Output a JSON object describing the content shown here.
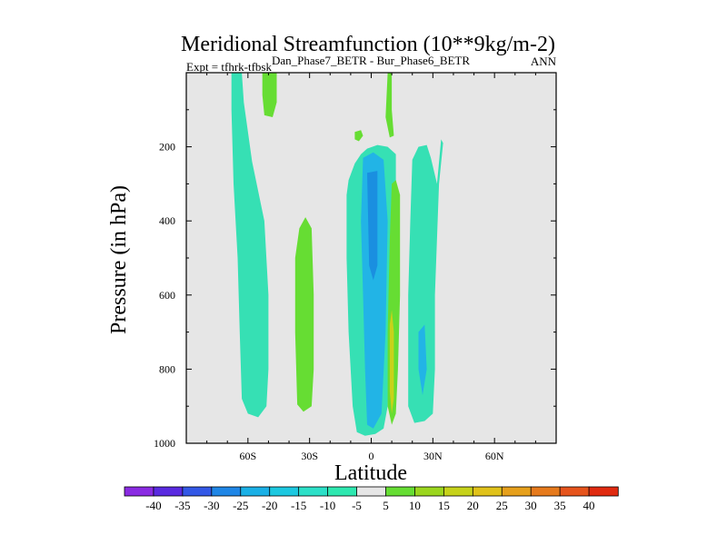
{
  "chart_data": {
    "type": "contour",
    "title": "Meridional Streamfunction (10**9kg/m-2)",
    "subtitle": "Dan_Phase7_BETR - Bur_Phase6_BETR",
    "left_label": "Expt = tfhrk-tfbsk",
    "right_label": "ANN",
    "xlabel": "Latitude",
    "ylabel": "Pressure (in hPa)",
    "xlim": [
      -90,
      90
    ],
    "ylim": [
      1000,
      0
    ],
    "x_ticks": [
      -60,
      -30,
      0,
      30,
      60
    ],
    "x_tick_labels": [
      "60S",
      "30S",
      "0",
      "30N",
      "60N"
    ],
    "y_ticks": [
      200,
      400,
      600,
      800,
      1000
    ],
    "y_tick_labels": [
      "200",
      "400",
      "600",
      "800",
      "1000"
    ],
    "background_color": "#e6e6e6",
    "colorbar": {
      "levels": [
        -40,
        -35,
        -30,
        -25,
        -20,
        -15,
        -10,
        -5,
        5,
        10,
        15,
        20,
        25,
        30,
        35,
        40
      ],
      "labels": [
        "-40",
        "-35",
        "-30",
        "-25",
        "-20",
        "-15",
        "-10",
        "-5",
        "5",
        "10",
        "15",
        "20",
        "25",
        "30",
        "35",
        "40"
      ],
      "colors": [
        "#8a2be2",
        "#5a2ae0",
        "#3358e6",
        "#1f86e6",
        "#1ab0e6",
        "#1cc8e0",
        "#2ce0c8",
        "#2ee8b0",
        "#e6e6e6",
        "#66dd33",
        "#9bd61e",
        "#c6d21a",
        "#e0c21a",
        "#e6a01c",
        "#e67a1c",
        "#e6541c",
        "#e02a10"
      ]
    },
    "regions": [
      {
        "name": "cyan-band-60S",
        "color": "#36e0b4",
        "points": [
          [
            -68,
            0
          ],
          [
            -63,
            0
          ],
          [
            -62,
            80
          ],
          [
            -58,
            240
          ],
          [
            -52,
            400
          ],
          [
            -50,
            600
          ],
          [
            -50,
            800
          ],
          [
            -51,
            900
          ],
          [
            -55,
            930
          ],
          [
            -60,
            920
          ],
          [
            -63,
            880
          ],
          [
            -64,
            700
          ],
          [
            -65,
            500
          ],
          [
            -67,
            300
          ],
          [
            -68,
            100
          ]
        ]
      },
      {
        "name": "green-top-50S",
        "color": "#66dd33",
        "points": [
          [
            -53,
            0
          ],
          [
            -46,
            0
          ],
          [
            -46,
            80
          ],
          [
            -48,
            120
          ],
          [
            -52,
            115
          ],
          [
            -53,
            60
          ]
        ]
      },
      {
        "name": "green-mid-30S",
        "color": "#66dd33",
        "points": [
          [
            -35,
            420
          ],
          [
            -32,
            390
          ],
          [
            -29,
            420
          ],
          [
            -28,
            600
          ],
          [
            -28,
            800
          ],
          [
            -29,
            900
          ],
          [
            -33,
            915
          ],
          [
            -36,
            895
          ],
          [
            -37,
            700
          ],
          [
            -37,
            500
          ]
        ]
      },
      {
        "name": "green-dot-5S",
        "color": "#66dd33",
        "points": [
          [
            -8,
            160
          ],
          [
            -5,
            155
          ],
          [
            -4,
            170
          ],
          [
            -6,
            185
          ],
          [
            -8,
            180
          ]
        ]
      },
      {
        "name": "cyan-equatorial",
        "color": "#36e0b4",
        "points": [
          [
            -11,
            290
          ],
          [
            -8,
            245
          ],
          [
            -5,
            220
          ],
          [
            -2,
            205
          ],
          [
            3,
            195
          ],
          [
            8,
            200
          ],
          [
            12,
            220
          ],
          [
            12,
            400
          ],
          [
            10,
            700
          ],
          [
            8,
            900
          ],
          [
            6,
            960
          ],
          [
            2,
            975
          ],
          [
            -3,
            980
          ],
          [
            -7,
            970
          ],
          [
            -9,
            900
          ],
          [
            -11,
            700
          ],
          [
            -12,
            500
          ],
          [
            -12,
            330
          ]
        ]
      },
      {
        "name": "blue-equatorial",
        "color": "#22b4e6",
        "points": [
          [
            -4,
            230
          ],
          [
            1,
            215
          ],
          [
            6,
            235
          ],
          [
            8,
            400
          ],
          [
            7,
            700
          ],
          [
            5,
            920
          ],
          [
            1,
            960
          ],
          [
            -2,
            950
          ],
          [
            -3,
            800
          ],
          [
            -4,
            600
          ],
          [
            -5,
            400
          ]
        ]
      },
      {
        "name": "blue-core",
        "color": "#1a8fe0",
        "points": [
          [
            -2,
            270
          ],
          [
            3,
            265
          ],
          [
            3,
            520
          ],
          [
            1,
            560
          ],
          [
            -1,
            520
          ]
        ]
      },
      {
        "name": "green-strip-10N",
        "color": "#66dd33",
        "points": [
          [
            8,
            0
          ],
          [
            10,
            0
          ],
          [
            10,
            100
          ],
          [
            11,
            170
          ],
          [
            9,
            175
          ],
          [
            7,
            120
          ]
        ]
      },
      {
        "name": "green-plume-10N",
        "color": "#66dd33",
        "points": [
          [
            10,
            300
          ],
          [
            12,
            290
          ],
          [
            14,
            330
          ],
          [
            14,
            600
          ],
          [
            13,
            800
          ],
          [
            12,
            920
          ],
          [
            10,
            950
          ],
          [
            8,
            900
          ],
          [
            8,
            700
          ],
          [
            9,
            450
          ]
        ]
      },
      {
        "name": "yellow-core-10N",
        "color": "#c8d21a",
        "points": [
          [
            9,
            680
          ],
          [
            10,
            640
          ],
          [
            11,
            700
          ],
          [
            11,
            880
          ],
          [
            10,
            920
          ],
          [
            9,
            860
          ]
        ]
      },
      {
        "name": "cyan-band-25N",
        "color": "#36e0b4",
        "points": [
          [
            20,
            235
          ],
          [
            23,
            200
          ],
          [
            27,
            195
          ],
          [
            29,
            230
          ],
          [
            32,
            300
          ],
          [
            34,
            180
          ],
          [
            35,
            190
          ],
          [
            33,
            300
          ],
          [
            31,
            600
          ],
          [
            31,
            800
          ],
          [
            30,
            920
          ],
          [
            26,
            940
          ],
          [
            21,
            945
          ],
          [
            18,
            900
          ],
          [
            18,
            600
          ],
          [
            19,
            400
          ]
        ]
      },
      {
        "name": "blue-core-25N",
        "color": "#22b4e6",
        "points": [
          [
            23,
            700
          ],
          [
            26,
            680
          ],
          [
            27,
            800
          ],
          [
            25,
            870
          ],
          [
            23,
            800
          ]
        ]
      }
    ]
  }
}
